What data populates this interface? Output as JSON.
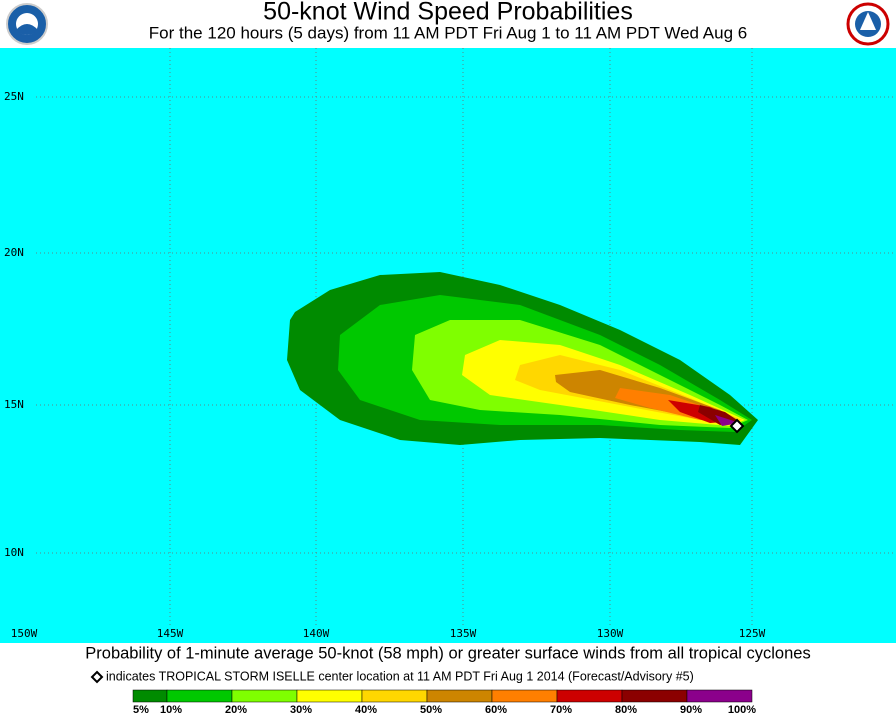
{
  "header": {
    "title": "50-knot Wind Speed Probabilities",
    "subtitle": "For the 120 hours (5 days) from 11 AM PDT Fri Aug 1 to 11 AM PDT Wed Aug 6"
  },
  "map": {
    "lat_labels": [
      "25N",
      "20N",
      "15N",
      "10N"
    ],
    "lon_labels": [
      "150W",
      "145W",
      "140W",
      "135W",
      "130W",
      "125W"
    ]
  },
  "caption": "Probability of 1-minute average 50-knot (58 mph) or greater surface winds from all tropical cyclones",
  "note": "indicates TROPICAL STORM ISELLE center location at 11 AM PDT Fri Aug 1 2014 (Forecast/Advisory #5)",
  "legend": {
    "labels": [
      "5%",
      "10%",
      "20%",
      "30%",
      "40%",
      "50%",
      "60%",
      "70%",
      "80%",
      "90%",
      "100%"
    ],
    "colors": [
      "#008b00",
      "#00c800",
      "#7fff00",
      "#ffff00",
      "#ffd700",
      "#cd8500",
      "#ff7f00",
      "#cd0000",
      "#8b0000",
      "#8b008b"
    ]
  }
}
